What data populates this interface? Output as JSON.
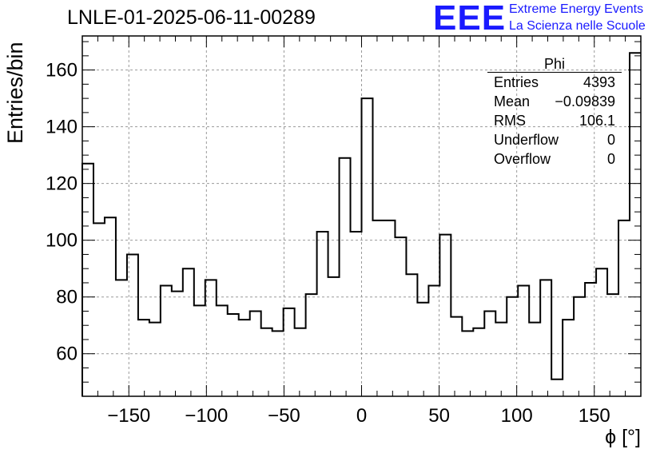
{
  "header": {
    "title": "LNLE-01-2025-06-11-00289",
    "logo_text": "EEE",
    "logo_line1": "Extreme Energy Events",
    "logo_line2": "La Scienza nelle Scuole"
  },
  "stats": {
    "title": "Phi",
    "rows": [
      {
        "label": "Entries",
        "value": "4393"
      },
      {
        "label": "Mean",
        "value": "−0.09839"
      },
      {
        "label": "RMS",
        "value": "106.1"
      },
      {
        "label": "Underflow",
        "value": "0"
      },
      {
        "label": "Overflow",
        "value": "0"
      }
    ]
  },
  "colors": {
    "line": "#000000",
    "grid": "#999999",
    "logo": "#1a1aff"
  },
  "chart_data": {
    "type": "bar",
    "style": "step-histogram",
    "xlabel": "ϕ [°]",
    "ylabel": "Entries/bin",
    "xlim": [
      -180,
      180
    ],
    "ylim": [
      45,
      172
    ],
    "grid": true,
    "bin_width": 7.2,
    "x_ticks": [
      -150,
      -100,
      -50,
      0,
      50,
      100,
      150
    ],
    "x_tick_labels": [
      "−150",
      "−100",
      "−50",
      "0",
      "50",
      "100",
      "150"
    ],
    "y_ticks": [
      60,
      80,
      100,
      120,
      140,
      160
    ],
    "y_tick_labels": [
      "60",
      "80",
      "100",
      "120",
      "140",
      "160"
    ],
    "values": [
      127,
      106,
      108,
      86,
      95,
      72,
      71,
      84,
      82,
      90,
      77,
      86,
      77,
      74,
      72,
      75,
      69,
      68,
      76,
      69,
      81,
      103,
      87,
      129,
      103,
      150,
      107,
      107,
      101,
      88,
      78,
      84,
      102,
      73,
      68,
      69,
      75,
      71,
      80,
      84,
      71,
      86,
      51,
      72,
      80,
      85,
      90,
      81,
      107,
      166
    ]
  }
}
